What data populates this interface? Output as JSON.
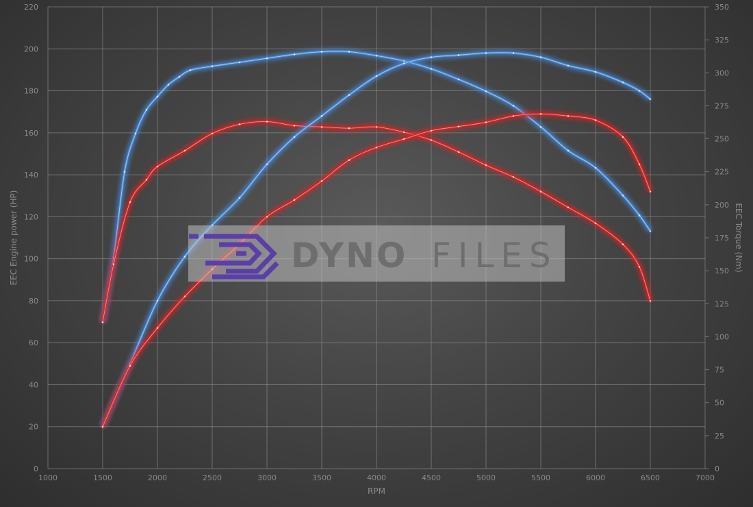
{
  "chart_data": {
    "type": "line",
    "title": "",
    "xlabel": "RPM",
    "ylabel_left": "EEC Engine power (HP)",
    "ylabel_right": "EEC Torque (Nm)",
    "xlim": [
      1000,
      7000
    ],
    "ylim_left": [
      0,
      220
    ],
    "ylim_right": [
      0,
      350
    ],
    "x_ticks": [
      1000,
      1500,
      2000,
      2500,
      3000,
      3500,
      4000,
      4500,
      5000,
      5500,
      6000,
      6500,
      7000
    ],
    "y_left_ticks": [
      0,
      20,
      40,
      60,
      80,
      100,
      120,
      140,
      160,
      180,
      200,
      220
    ],
    "y_right_ticks": [
      0,
      25,
      50,
      75,
      100,
      125,
      150,
      175,
      200,
      225,
      250,
      275,
      300,
      325,
      350
    ],
    "grid": true,
    "colors": {
      "tuned": "#4a90e2",
      "stock": "#e02424"
    },
    "series": [
      {
        "color_key": "tuned",
        "axis": "right",
        "x": [
          1500,
          1600,
          1700,
          1800,
          1900,
          2000,
          2100,
          2200,
          2300,
          2500,
          2750,
          3000,
          3250,
          3500,
          3750,
          4000,
          4250,
          4500,
          4750,
          5000,
          5250,
          5500,
          5750,
          6000,
          6250,
          6400,
          6500
        ],
        "y": [
          111,
          160,
          225,
          254,
          272,
          282,
          291,
          297,
          302,
          305,
          308,
          311,
          314,
          316,
          316,
          313,
          309,
          303,
          295,
          286,
          275,
          259,
          241,
          228,
          207,
          192,
          180
        ]
      },
      {
        "color_key": "stock",
        "axis": "right",
        "x": [
          1500,
          1600,
          1750,
          1900,
          2000,
          2250,
          2500,
          2750,
          3000,
          3250,
          3500,
          3750,
          4000,
          4250,
          4500,
          4750,
          5000,
          5250,
          5500,
          5750,
          6000,
          6250,
          6400,
          6500
        ],
        "y": [
          111,
          155,
          202,
          219,
          229,
          241,
          254,
          261,
          263,
          260,
          259,
          258,
          259,
          255,
          249,
          240,
          230,
          221,
          210,
          198,
          186,
          170,
          153,
          127
        ]
      },
      {
        "color_key": "tuned",
        "axis": "left",
        "x": [
          1500,
          1750,
          2000,
          2250,
          2500,
          2750,
          3000,
          3250,
          3500,
          3750,
          4000,
          4250,
          4500,
          4750,
          5000,
          5250,
          5500,
          5750,
          6000,
          6250,
          6400,
          6500
        ],
        "y": [
          20,
          50,
          80,
          101,
          116,
          129,
          145,
          158,
          168,
          178,
          187,
          193,
          196,
          197,
          198,
          198,
          196,
          192,
          189,
          184,
          180,
          176
        ]
      },
      {
        "color_key": "stock",
        "axis": "left",
        "x": [
          1500,
          1750,
          2000,
          2250,
          2500,
          2750,
          3000,
          3250,
          3500,
          3750,
          4000,
          4250,
          4500,
          4750,
          5000,
          5250,
          5500,
          5750,
          6000,
          6250,
          6400,
          6500
        ],
        "y": [
          20,
          49,
          67,
          82,
          95,
          107,
          120,
          128,
          137,
          147,
          153,
          157,
          161,
          163,
          165,
          168,
          169,
          168,
          166,
          158,
          145,
          132
        ]
      }
    ]
  },
  "watermark": {
    "text_bold": "DYNO",
    "text_light": "FILES",
    "logo_color": "#5b3fa8"
  }
}
